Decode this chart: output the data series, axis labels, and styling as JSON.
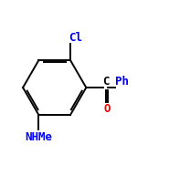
{
  "bg_color": "#ffffff",
  "bond_color": "#000000",
  "cl_color": "#0000ff",
  "nhme_color": "#0000ff",
  "ph_color": "#0000ff",
  "o_color": "#ff0000",
  "c_color": "#000000",
  "figsize": [
    1.85,
    2.05
  ],
  "dpi": 100,
  "cl_label": "Cl",
  "nhme_label": "NHMe",
  "ph_label": "Ph",
  "o_label": "O",
  "c_label": "C"
}
